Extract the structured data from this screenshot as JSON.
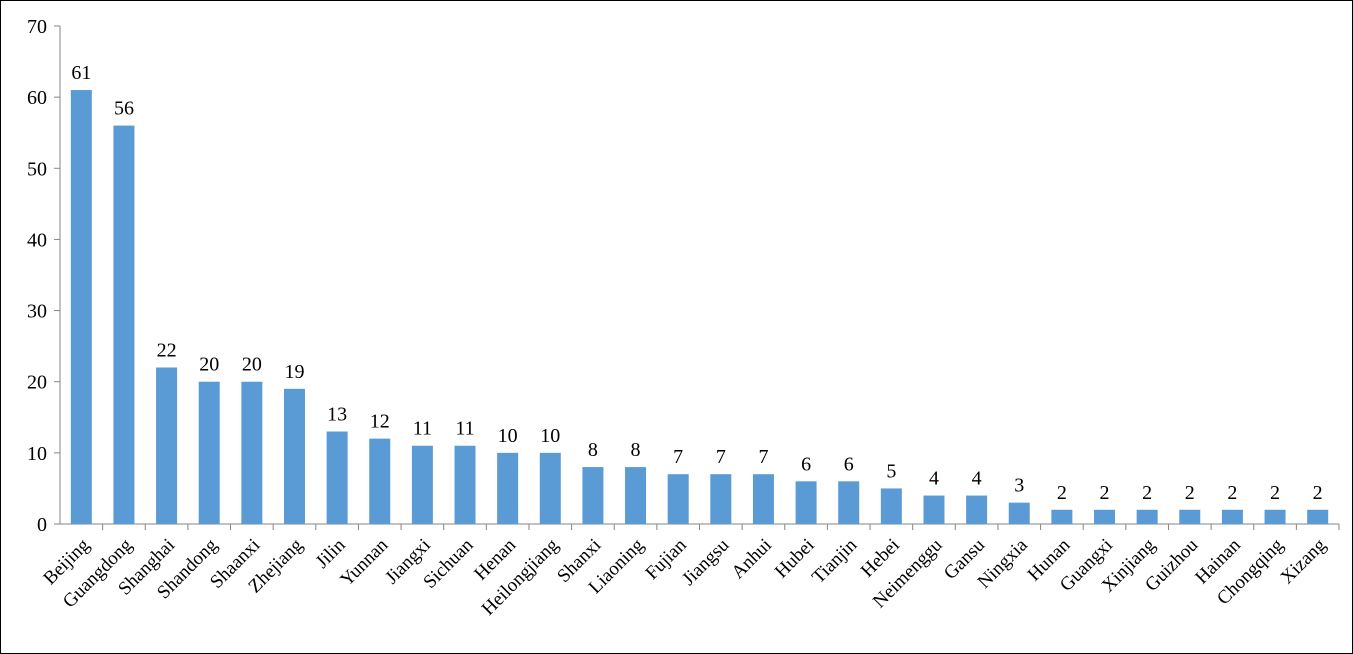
{
  "chart_data": {
    "type": "bar",
    "title": "",
    "xlabel": "",
    "ylabel": "",
    "ylim": [
      0,
      70
    ],
    "yticks": [
      0,
      10,
      20,
      30,
      40,
      50,
      60,
      70
    ],
    "grid": false,
    "legend": "none",
    "categories": [
      "Beijing",
      "Guangdong",
      "Shanghai",
      "Shandong",
      "Shaanxi",
      "Zhejiang",
      "Jilin",
      "Yunnan",
      "Jiangxi",
      "Sichuan",
      "Henan",
      "Heilongjiang",
      "Shanxi",
      "Liaoning",
      "Fujian",
      "Jiangsu",
      "Anhui",
      "Hubei",
      "Tianjin",
      "Hebei",
      "Neimenggu",
      "Gansu",
      "Ningxia",
      "Hunan",
      "Guangxi",
      "Xinjiang",
      "Guizhou",
      "Hainan",
      "Chongqing",
      "Xizang"
    ],
    "values": [
      61,
      56,
      22,
      20,
      20,
      19,
      13,
      12,
      11,
      11,
      10,
      10,
      8,
      8,
      7,
      7,
      7,
      6,
      6,
      5,
      4,
      4,
      3,
      2,
      2,
      2,
      2,
      2,
      2,
      2
    ],
    "bar_color": "#5B9BD5",
    "axis_color": "#868686"
  }
}
